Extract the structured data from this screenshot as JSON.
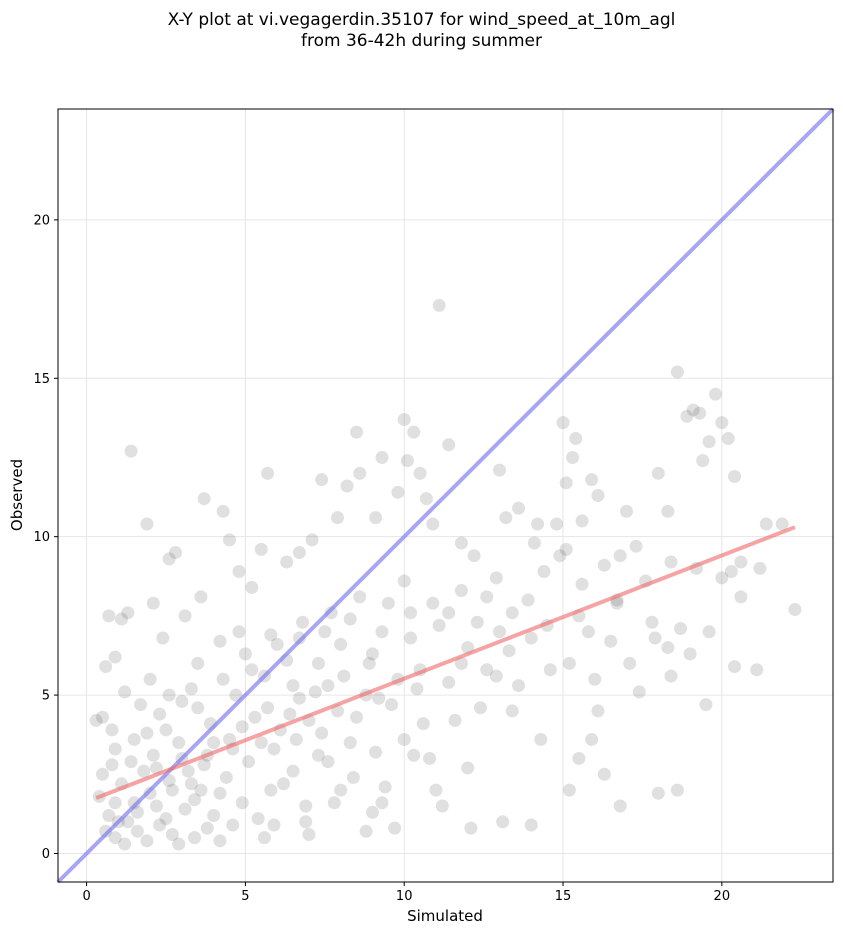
{
  "chart_data": {
    "type": "scatter",
    "title": "X-Y plot at vi.vegagerdin.35107 for wind_speed_at_10m_agl\nfrom 36-42h during summer",
    "xlabel": "Simulated",
    "ylabel": "Observed",
    "xlim": [
      -0.9,
      23.5
    ],
    "ylim": [
      -0.9,
      23.5
    ],
    "xticks": [
      0,
      5,
      10,
      15,
      20
    ],
    "yticks": [
      0,
      5,
      10,
      15,
      20
    ],
    "grid": true,
    "colors": {
      "points": "#555555",
      "identity_line": "#7777ee",
      "fit_line": "#ee6666"
    },
    "identity_line": {
      "x": [
        -0.9,
        23.5
      ],
      "y": [
        -0.9,
        23.5
      ]
    },
    "fit_line": {
      "x": [
        0.3,
        22.3
      ],
      "y": [
        1.75,
        10.3
      ]
    },
    "points": [
      [
        0.3,
        4.2
      ],
      [
        0.5,
        4.3
      ],
      [
        0.6,
        5.9
      ],
      [
        0.7,
        7.5
      ],
      [
        0.9,
        6.2
      ],
      [
        1.1,
        7.4
      ],
      [
        1.3,
        7.6
      ],
      [
        1.4,
        12.7
      ],
      [
        1.9,
        10.4
      ],
      [
        2.1,
        7.9
      ],
      [
        2.4,
        6.8
      ],
      [
        2.6,
        9.3
      ],
      [
        2.8,
        9.5
      ],
      [
        3.1,
        7.5
      ],
      [
        3.6,
        8.1
      ],
      [
        3.7,
        11.2
      ],
      [
        4.3,
        10.8
      ],
      [
        4.5,
        9.9
      ],
      [
        4.8,
        8.9
      ],
      [
        5.2,
        8.4
      ],
      [
        5.5,
        9.6
      ],
      [
        5.7,
        12.0
      ],
      [
        6.3,
        9.2
      ],
      [
        6.7,
        9.5
      ],
      [
        7.1,
        9.9
      ],
      [
        7.4,
        11.8
      ],
      [
        7.9,
        10.6
      ],
      [
        8.2,
        11.6
      ],
      [
        8.5,
        13.3
      ],
      [
        8.6,
        12.0
      ],
      [
        9.1,
        10.6
      ],
      [
        9.3,
        12.5
      ],
      [
        9.8,
        11.4
      ],
      [
        10.0,
        13.7
      ],
      [
        10.1,
        12.4
      ],
      [
        10.3,
        13.3
      ],
      [
        10.5,
        12.0
      ],
      [
        10.7,
        11.2
      ],
      [
        10.9,
        10.4
      ],
      [
        11.1,
        17.3
      ],
      [
        11.4,
        12.9
      ],
      [
        11.8,
        9.8
      ],
      [
        12.2,
        9.4
      ],
      [
        12.6,
        8.1
      ],
      [
        13.0,
        12.1
      ],
      [
        13.2,
        10.6
      ],
      [
        13.6,
        10.9
      ],
      [
        14.1,
        9.8
      ],
      [
        14.4,
        8.9
      ],
      [
        14.8,
        10.4
      ],
      [
        15.0,
        13.6
      ],
      [
        15.1,
        11.7
      ],
      [
        15.3,
        12.5
      ],
      [
        15.4,
        13.1
      ],
      [
        15.6,
        10.5
      ],
      [
        15.9,
        11.8
      ],
      [
        16.1,
        11.3
      ],
      [
        16.3,
        9.1
      ],
      [
        16.7,
        7.9
      ],
      [
        17.0,
        10.8
      ],
      [
        17.3,
        9.7
      ],
      [
        17.9,
        6.8
      ],
      [
        18.0,
        12.0
      ],
      [
        18.3,
        10.8
      ],
      [
        18.4,
        9.2
      ],
      [
        18.6,
        15.2
      ],
      [
        18.9,
        13.8
      ],
      [
        19.1,
        14.0
      ],
      [
        19.3,
        13.9
      ],
      [
        19.4,
        12.4
      ],
      [
        19.6,
        13.0
      ],
      [
        19.8,
        14.5
      ],
      [
        20.0,
        13.6
      ],
      [
        20.2,
        13.1
      ],
      [
        20.4,
        11.9
      ],
      [
        20.6,
        8.1
      ],
      [
        21.2,
        9.0
      ],
      [
        21.4,
        10.4
      ],
      [
        21.9,
        10.4
      ],
      [
        22.3,
        7.7
      ],
      [
        18.0,
        1.9
      ],
      [
        18.6,
        2.0
      ],
      [
        16.8,
        1.5
      ],
      [
        15.2,
        2.0
      ],
      [
        14.0,
        0.9
      ],
      [
        13.1,
        1.0
      ],
      [
        12.1,
        0.8
      ],
      [
        9.3,
        1.6
      ],
      [
        9.0,
        1.3
      ],
      [
        11.2,
        1.5
      ],
      [
        16.3,
        2.5
      ],
      [
        16.1,
        4.5
      ],
      [
        17.4,
        5.1
      ],
      [
        19.5,
        4.7
      ],
      [
        20.4,
        5.9
      ],
      [
        21.1,
        5.8
      ],
      [
        19.0,
        6.3
      ],
      [
        18.3,
        6.5
      ],
      [
        14.3,
        3.6
      ],
      [
        13.4,
        4.5
      ],
      [
        15.5,
        3.0
      ],
      [
        15.9,
        3.6
      ],
      [
        12.0,
        2.7
      ],
      [
        11.0,
        2.0
      ],
      [
        10.3,
        3.1
      ],
      [
        7.0,
        0.6
      ],
      [
        5.6,
        0.5
      ],
      [
        4.2,
        0.4
      ],
      [
        3.4,
        0.5
      ],
      [
        2.7,
        0.6
      ],
      [
        1.6,
        0.7
      ],
      [
        0.9,
        0.5
      ],
      [
        0.7,
        1.2
      ],
      [
        1.3,
        1.0
      ],
      [
        2.2,
        1.5
      ],
      [
        0.5,
        2.5
      ],
      [
        0.9,
        3.3
      ],
      [
        1.5,
        3.6
      ],
      [
        2.3,
        4.4
      ],
      [
        3.0,
        4.8
      ],
      [
        2.0,
        5.5
      ],
      [
        1.2,
        5.1
      ],
      [
        3.5,
        6.0
      ],
      [
        4.2,
        6.7
      ],
      [
        4.8,
        7.0
      ],
      [
        6.0,
        6.6
      ],
      [
        6.8,
        7.3
      ],
      [
        7.7,
        7.6
      ],
      [
        8.6,
        8.1
      ],
      [
        9.5,
        7.9
      ],
      [
        5.2,
        5.8
      ],
      [
        6.5,
        5.3
      ],
      [
        7.3,
        6.0
      ],
      [
        8.0,
        6.6
      ],
      [
        9.0,
        6.3
      ],
      [
        10.2,
        6.8
      ],
      [
        11.1,
        7.2
      ],
      [
        12.0,
        6.5
      ],
      [
        13.0,
        7.0
      ],
      [
        14.0,
        6.8
      ],
      [
        15.2,
        6.0
      ],
      [
        16.0,
        5.5
      ],
      [
        17.1,
        6.0
      ],
      [
        18.4,
        5.6
      ],
      [
        13.6,
        5.3
      ],
      [
        12.4,
        4.6
      ],
      [
        11.6,
        4.2
      ],
      [
        10.6,
        4.1
      ],
      [
        9.6,
        4.7
      ],
      [
        8.8,
        5.0
      ],
      [
        7.9,
        4.5
      ],
      [
        7.0,
        4.2
      ],
      [
        6.1,
        3.9
      ],
      [
        5.3,
        4.3
      ],
      [
        4.5,
        3.6
      ],
      [
        3.8,
        3.1
      ],
      [
        3.2,
        2.6
      ],
      [
        2.6,
        2.3
      ],
      [
        2.0,
        1.9
      ],
      [
        1.5,
        1.6
      ],
      [
        3.6,
        2.0
      ],
      [
        4.4,
        2.4
      ],
      [
        5.1,
        2.9
      ],
      [
        5.9,
        3.3
      ],
      [
        6.6,
        3.6
      ],
      [
        7.4,
        3.8
      ],
      [
        8.3,
        3.5
      ],
      [
        9.1,
        3.2
      ],
      [
        10.0,
        3.6
      ],
      [
        10.8,
        3.0
      ],
      [
        4.0,
        1.2
      ],
      [
        4.9,
        1.6
      ],
      [
        5.8,
        2.0
      ],
      [
        6.5,
        2.6
      ],
      [
        7.6,
        2.9
      ],
      [
        8.4,
        2.4
      ],
      [
        9.4,
        2.1
      ],
      [
        6.9,
        1.5
      ],
      [
        5.4,
        1.1
      ],
      [
        3.1,
        1.4
      ],
      [
        2.3,
        0.9
      ],
      [
        1.8,
        2.6
      ],
      [
        1.1,
        2.2
      ],
      [
        2.9,
        3.5
      ],
      [
        3.9,
        4.1
      ],
      [
        4.7,
        5.0
      ],
      [
        5.6,
        5.6
      ],
      [
        6.3,
        6.1
      ],
      [
        7.2,
        5.1
      ],
      [
        8.1,
        5.6
      ],
      [
        8.9,
        6.0
      ],
      [
        9.8,
        5.5
      ],
      [
        10.5,
        5.8
      ],
      [
        11.4,
        5.4
      ],
      [
        12.6,
        5.8
      ],
      [
        13.3,
        6.4
      ],
      [
        14.6,
        5.8
      ],
      [
        15.8,
        7.0
      ],
      [
        16.5,
        6.7
      ],
      [
        17.8,
        7.3
      ],
      [
        19.2,
        9.0
      ],
      [
        20.0,
        8.7
      ],
      [
        20.6,
        9.2
      ],
      [
        15.6,
        8.5
      ],
      [
        14.9,
        9.4
      ],
      [
        13.9,
        8.0
      ],
      [
        12.9,
        8.7
      ],
      [
        11.8,
        8.3
      ],
      [
        10.9,
        7.9
      ],
      [
        10.0,
        8.6
      ],
      [
        3.3,
        5.2
      ],
      [
        2.5,
        3.9
      ],
      [
        1.7,
        4.7
      ],
      [
        0.8,
        3.9
      ],
      [
        1.4,
        2.9
      ],
      [
        2.1,
        3.1
      ],
      [
        0.4,
        1.8
      ],
      [
        0.9,
        1.6
      ],
      [
        1.6,
        1.3
      ],
      [
        2.5,
        1.1
      ],
      [
        3.7,
        2.8
      ],
      [
        4.6,
        3.3
      ],
      [
        5.7,
        4.6
      ],
      [
        6.7,
        4.9
      ],
      [
        7.6,
        5.3
      ],
      [
        8.5,
        4.3
      ],
      [
        9.2,
        4.9
      ],
      [
        10.4,
        5.2
      ],
      [
        11.8,
        6.0
      ],
      [
        12.9,
        5.6
      ],
      [
        2.9,
        0.3
      ],
      [
        3.8,
        0.8
      ],
      [
        4.6,
        0.9
      ],
      [
        5.9,
        0.9
      ],
      [
        6.9,
        1.0
      ],
      [
        7.8,
        1.6
      ],
      [
        8.8,
        0.7
      ],
      [
        9.7,
        0.8
      ],
      [
        8.0,
        2.0
      ],
      [
        6.2,
        2.2
      ],
      [
        4.2,
        1.9
      ],
      [
        3.4,
        1.7
      ],
      [
        2.7,
        2.0
      ],
      [
        1.9,
        0.4
      ],
      [
        1.2,
        0.3
      ],
      [
        4.0,
        3.5
      ],
      [
        4.9,
        4.0
      ],
      [
        5.5,
        3.5
      ],
      [
        6.4,
        4.4
      ],
      [
        7.3,
        3.1
      ],
      [
        3.0,
        3.0
      ],
      [
        3.3,
        2.2
      ],
      [
        2.2,
        2.7
      ],
      [
        1.0,
        1.0
      ],
      [
        0.6,
        0.7
      ],
      [
        0.8,
        2.8
      ],
      [
        1.9,
        3.8
      ],
      [
        2.6,
        5.0
      ],
      [
        3.5,
        4.6
      ],
      [
        4.3,
        5.5
      ],
      [
        5.0,
        6.3
      ],
      [
        5.8,
        6.9
      ],
      [
        6.7,
        6.8
      ],
      [
        7.5,
        7.0
      ],
      [
        8.3,
        7.4
      ],
      [
        9.3,
        7.0
      ],
      [
        10.2,
        7.6
      ],
      [
        11.4,
        7.6
      ],
      [
        12.3,
        7.3
      ],
      [
        13.4,
        7.6
      ],
      [
        14.5,
        7.2
      ],
      [
        15.5,
        7.5
      ],
      [
        16.7,
        8.0
      ],
      [
        17.6,
        8.6
      ],
      [
        18.7,
        7.1
      ],
      [
        19.6,
        7.0
      ],
      [
        20.3,
        8.9
      ],
      [
        16.8,
        9.4
      ],
      [
        15.1,
        9.6
      ],
      [
        14.2,
        10.4
      ]
    ]
  }
}
